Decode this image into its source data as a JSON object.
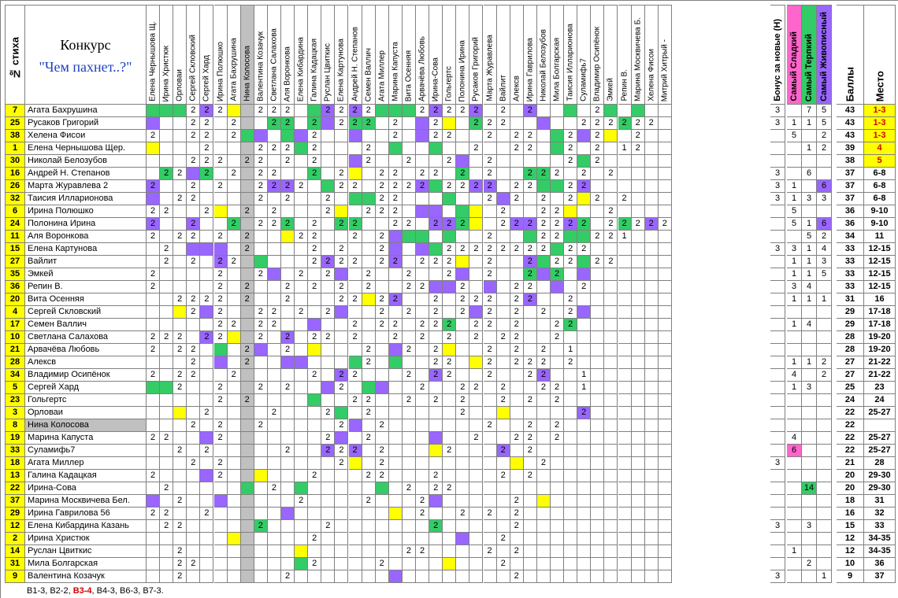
{
  "header": {
    "num_label": "№ стиха",
    "title": "Конкурс",
    "subtitle": "\"Чем пахнет..?\"",
    "jury": [
      "Елена Чернышова Щ.",
      "Ирина Христюк",
      "Орловаи",
      "Сергей Скловский",
      "Сергей Хард",
      "Ирина Полюшко",
      "Агата Бахрушина",
      "Нина Колосова",
      "Валентина Козачук",
      "Светлана Салахова",
      "Аля Воронкова",
      "Елена Кибардина",
      "Галина Кадацкая",
      "Руслан Цвиткис",
      "Елена Картунова",
      "Андрей Н. Степанов",
      "Семен Валлич",
      "Агата Миллер",
      "Марина Капуста",
      "Вита Осенняя",
      "Арвачёва Любовь",
      "Ирина-Сова",
      "Гольгертс",
      "Полонина Ирина",
      "Русаков Григорий",
      "Марта Журавлева",
      "Вайлит",
      "Алексв",
      "Ирина Гаврилова",
      "Николай Белозубов",
      "Мила Болгарская",
      "Таисия Илларионова",
      "Суламифь7",
      "Владимир Осипёнок",
      "Эмкей",
      "Репин В.",
      "Марина Москвичева Б.",
      "Хелена Фисои",
      "Митрий Хитрый -"
    ],
    "extra": [
      "Бонус за новые (Н)",
      "Самый Сладкий",
      "Самый Терпкий",
      "Самый Живописный"
    ],
    "score_label": "Баллы",
    "place_label": "Место"
  },
  "colors": {
    "blue": "#b7dde8",
    "purple": "#9966ff",
    "green": "#33cc66",
    "yellow": "#ffff00",
    "pink": "#ff66cc",
    "gray": "#c0c0c0",
    "orange": "#ffff66",
    "sweet": "#ff66cc",
    "tart": "#33cc66",
    "pictorial": "#9966ff",
    "num": "#ffff00",
    "place_top": "#ffff00"
  },
  "rows": [
    {
      "num": "7",
      "name": "Агата Бахрушина",
      "score": "43",
      "place": "1-3",
      "b": "3",
      "s": "",
      "t": "7",
      "p": "5"
    },
    {
      "num": "25",
      "name": "Русаков Григорий",
      "score": "43",
      "place": "1-3",
      "b": "3",
      "s": "1",
      "t": "1",
      "p": "5"
    },
    {
      "num": "38",
      "name": "Хелена Фисои",
      "score": "43",
      "place": "1-3",
      "b": "",
      "s": "5",
      "t": "",
      "p": "2"
    },
    {
      "num": "1",
      "name": "Елена Чернышова Щер.",
      "score": "39",
      "place": "4",
      "b": "",
      "s": "",
      "t": "1",
      "p": "2"
    },
    {
      "num": "30",
      "name": "Николай Белозубов",
      "score": "38",
      "place": "5",
      "b": "",
      "s": "",
      "t": "",
      "p": ""
    },
    {
      "num": "16",
      "name": "Андрей Н. Степанов",
      "score": "37",
      "place": "6-8",
      "b": "3",
      "s": "",
      "t": "6",
      "p": ""
    },
    {
      "num": "26",
      "name": "Марта Журавлева 2",
      "score": "37",
      "place": "6-8",
      "b": "3",
      "s": "1",
      "t": "",
      "p": "6"
    },
    {
      "num": "32",
      "name": "Таисия Илларионова",
      "score": "37",
      "place": "6-8",
      "b": "3",
      "s": "1",
      "t": "3",
      "p": "3"
    },
    {
      "num": "6",
      "name": "Ирина Полюшко",
      "score": "36",
      "place": "9-10",
      "b": "",
      "s": "5",
      "t": "",
      "p": ""
    },
    {
      "num": "24",
      "name": "Полонина Ирина",
      "score": "36",
      "place": "9-10",
      "b": "",
      "s": "5",
      "t": "1",
      "p": "6"
    },
    {
      "num": "11",
      "name": "Аля Воронкова",
      "score": "34",
      "place": "11",
      "b": "",
      "s": "",
      "t": "5",
      "p": "2"
    },
    {
      "num": "15",
      "name": "Елена Картунова",
      "score": "33",
      "place": "12-15",
      "b": "3",
      "s": "3",
      "t": "1",
      "p": "4"
    },
    {
      "num": "27",
      "name": "Вайлит",
      "score": "33",
      "place": "12-15",
      "b": "",
      "s": "1",
      "t": "1",
      "p": "3"
    },
    {
      "num": "35",
      "name": "Эмкей",
      "score": "33",
      "place": "12-15",
      "b": "",
      "s": "1",
      "t": "1",
      "p": "5"
    },
    {
      "num": "36",
      "name": "Репин В.",
      "score": "33",
      "place": "12-15",
      "b": "",
      "s": "3",
      "t": "4",
      "p": ""
    },
    {
      "num": "20",
      "name": "Вита Осенняя",
      "score": "31",
      "place": "16",
      "b": "",
      "s": "1",
      "t": "1",
      "p": "1"
    },
    {
      "num": "4",
      "name": "Сергей Скловский",
      "score": "29",
      "place": "17-18",
      "b": "",
      "s": "",
      "t": "",
      "p": ""
    },
    {
      "num": "17",
      "name": "Семен Валлич",
      "score": "29",
      "place": "17-18",
      "b": "",
      "s": "1",
      "t": "4",
      "p": ""
    },
    {
      "num": "10",
      "name": "Светлана Салахова",
      "score": "28",
      "place": "19-20",
      "b": "",
      "s": "",
      "t": "",
      "p": ""
    },
    {
      "num": "21",
      "name": "Арвачёва Любовь",
      "score": "28",
      "place": "19-20",
      "b": "",
      "s": "",
      "t": "",
      "p": ""
    },
    {
      "num": "28",
      "name": "Алексв",
      "score": "27",
      "place": "21-22",
      "b": "",
      "s": "1",
      "t": "1",
      "p": "2"
    },
    {
      "num": "34",
      "name": "Владимир Осипёнок",
      "score": "27",
      "place": "21-22",
      "b": "",
      "s": "4",
      "t": "",
      "p": "2"
    },
    {
      "num": "5",
      "name": "Сергей Хард",
      "score": "25",
      "place": "23",
      "b": "",
      "s": "1",
      "t": "3",
      "p": ""
    },
    {
      "num": "23",
      "name": "Гольгертс",
      "score": "24",
      "place": "24",
      "b": "",
      "s": "",
      "t": "",
      "p": ""
    },
    {
      "num": "3",
      "name": "Орловаи",
      "score": "22",
      "place": "25-27",
      "b": "",
      "s": "",
      "t": "",
      "p": ""
    },
    {
      "num": "8",
      "name": "Нина Колосова",
      "score": "22",
      "place": "",
      "b": "",
      "s": "",
      "t": "",
      "p": ""
    },
    {
      "num": "19",
      "name": "Марина Капуста",
      "score": "22",
      "place": "25-27",
      "b": "",
      "s": "4",
      "t": "",
      "p": ""
    },
    {
      "num": "33",
      "name": "Суламифь7",
      "score": "22",
      "place": "25-27",
      "b": "",
      "s": "6",
      "t": "",
      "p": ""
    },
    {
      "num": "18",
      "name": "Агата Миллер",
      "score": "21",
      "place": "28",
      "b": "3",
      "s": "",
      "t": "",
      "p": ""
    },
    {
      "num": "13",
      "name": "Галина Кадацкая",
      "score": "20",
      "place": "29-30",
      "b": "",
      "s": "",
      "t": "",
      "p": ""
    },
    {
      "num": "22",
      "name": "Ирина-Сова",
      "score": "20",
      "place": "29-30",
      "b": "",
      "s": "",
      "t": "14",
      "p": ""
    },
    {
      "num": "37",
      "name": "Марина Москвичева Бел.",
      "score": "18",
      "place": "31",
      "b": "",
      "s": "",
      "t": "",
      "p": ""
    },
    {
      "num": "29",
      "name": "Ирина Гаврилова 56",
      "score": "16",
      "place": "32",
      "b": "",
      "s": "",
      "t": "",
      "p": ""
    },
    {
      "num": "12",
      "name": "Елена Кибардина Казань",
      "score": "15",
      "place": "33",
      "b": "3",
      "s": "",
      "t": "3",
      "p": ""
    },
    {
      "num": "2",
      "name": "Ирина Христюк",
      "score": "12",
      "place": "34-35",
      "b": "",
      "s": "",
      "t": "",
      "p": ""
    },
    {
      "num": "14",
      "name": "Руслан Цвиткис",
      "score": "12",
      "place": "34-35",
      "b": "",
      "s": "1",
      "t": "",
      "p": ""
    },
    {
      "num": "31",
      "name": "Мила Болгарская",
      "score": "10",
      "place": "36",
      "b": "",
      "s": "",
      "t": "2",
      "p": ""
    },
    {
      "num": "9",
      "name": "Валентина Козачук",
      "score": "9",
      "place": "37",
      "b": "3",
      "s": "",
      "t": "",
      "p": "1"
    }
  ],
  "votes": [
    "ggg2P2Y.222.gP2P2ggg2P22P.2.P..g.2g.g.",
    "P..22.2..gg.gP2gg.2.P2Y.g22..P..222g22",
    "2..22.2gP.gP2..P..2.P22..2.22.g2P2Y.2",
    "Y...2...222g2...2.g..g..2..22.g2.2.12",
    "...222.22.2.2..P2..2..2P.2.....2g2...",
    ".g2Pg.2.22..g.2Y.22.22.g.2..gg2.2.2..",
    "P..2.2..2PP2.g22.222Pg22PP.22gg2P...",
    "P.22....2.2..2.gg22...g..2P2.2.2Y2.2",
    "22..2Y.2.2...2Y.222.PP.gY.2..22Y..2...",
    "P..P..g.22g.2.gg..22.PPgY.2PP22Pg.2g2P2",
    "2.22.2.2..Y22..2.2Pgg.g..2..g22gg221",
    ".2.PPP.2....2.2..2P.Pg22222222g22..",
    ".2.2.P2.g...2P22.2P.222Y.2..Pg22g22",
    "2....2..2P.2.2P.2..2..2P.2..gPg.P",
    "2....2.2..2.2.2.2..22PP2.P.22.P.2",
    "..2222.2..2...22Y2P..2.222.2P..2.",
    "..Y2P2..22.2.2P..2.2.2.2P2.2.2.2P",
    ".....22.22..P..2.22.22g.22.2..2g",
    "222.P2Y.2.P.22.2..2.2.2.2.22..2",
    "2.22.g.2P.2.Y...2.P2.2Y..2.2.2.1",
    "...2.P.2..PP...g2.g..22.Y2.222.2",
    "2.22..2.....2.P2...2.P2..2..2P..1",
    "gg2..2..2.2..P2.gP..2..22.2..22.1",
    ".....2.2....g..22..2.2.2..2.2.2",
    "..Y.2....2...2g.2......2..Y.....P",
    "...2.2..2.....2P.2.......2..2.2",
    "22..P2.......2P.2....P..2..22.2",
    "..2.2.....2..P2P.2...Y2...P.2",
    "...2.2........2Y.2.........Y.2",
    "2...P2..Y...2...22...2....2.2",
    ".2.....g.2.g.....g.2.22.......",
    "P.2..P.....2....2...2P.....2.Y",
    "22..2.....P.......Y.2..2.2.2.",
    ".22.....g....2.......g.....2",
    "......Y.....2..........P..2.",
    "..2........Y.......22....2.2",
    "..22.......g2....2....Y...2.",
    "..2.......2.......P........2"
  ]
}
